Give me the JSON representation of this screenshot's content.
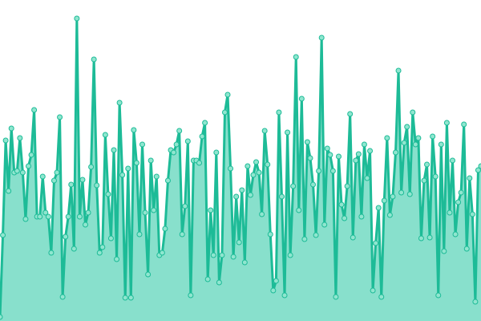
{
  "chart_data": {
    "type": "area",
    "color": "#1dbb97",
    "fill_color": "#88e0cc",
    "marker_fill": "#8fe6cf",
    "ylim": [
      0,
      400
    ],
    "values": [
      5,
      107,
      225,
      162,
      240,
      185,
      187,
      228,
      185,
      127,
      193,
      207,
      263,
      130,
      130,
      180,
      135,
      130,
      85,
      175,
      185,
      254,
      30,
      105,
      130,
      170,
      90,
      377,
      130,
      176,
      120,
      135,
      192,
      326,
      169,
      85,
      92,
      232,
      158,
      103,
      213,
      77,
      272,
      182,
      29,
      190,
      29,
      238,
      197,
      108,
      220,
      135,
      58,
      200,
      138,
      180,
      82,
      85,
      115,
      175,
      213,
      210,
      220,
      237,
      108,
      143,
      224,
      32,
      200,
      200,
      197,
      230,
      247,
      52,
      138,
      82,
      210,
      48,
      82,
      260,
      282,
      190,
      80,
      155,
      98,
      163,
      73,
      193,
      157,
      182,
      198,
      185,
      133,
      237,
      195,
      108,
      38,
      50,
      260,
      155,
      32,
      235,
      82,
      168,
      329,
      138,
      277,
      102,
      223,
      203,
      170,
      107,
      187,
      353,
      120,
      215,
      207,
      187,
      30,
      205,
      145,
      128,
      168,
      258,
      104,
      200,
      208,
      130,
      220,
      178,
      212,
      38,
      97,
      141,
      30,
      150,
      228,
      132,
      155,
      210,
      312,
      160,
      222,
      242,
      158,
      260,
      220,
      228,
      103,
      175,
      195,
      104,
      230,
      180,
      32,
      220,
      87,
      247,
      135,
      200,
      108,
      148,
      160,
      245,
      90,
      178,
      133,
      24,
      188,
      193
    ]
  }
}
